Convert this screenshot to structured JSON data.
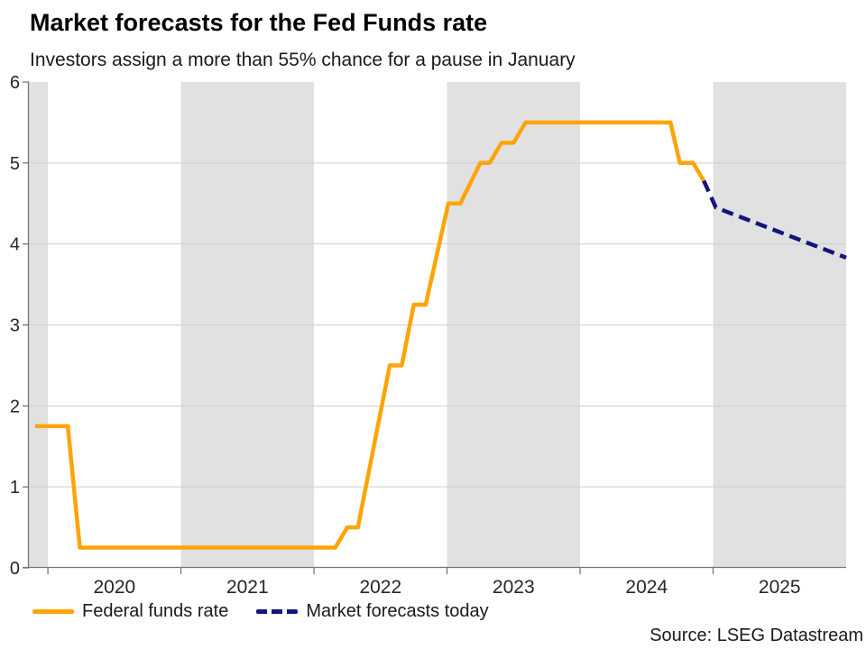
{
  "header": {
    "title": "Market forecasts for the Fed Funds rate",
    "subtitle": "Investors assign a more than 55% chance for a pause in January"
  },
  "footer": {
    "source": "Source: LSEG Datastream"
  },
  "chart_data": {
    "type": "line",
    "title": "Market forecasts for the Fed Funds rate",
    "subtitle": "Investors assign a more than 55% chance for a pause in January",
    "x_axis": {
      "unit": "year",
      "range": [
        2019.857,
        2026.0
      ],
      "tick_years": [
        2020,
        2021,
        2022,
        2023,
        2024,
        2025
      ],
      "tick_labels": [
        "2020",
        "2021",
        "2022",
        "2023",
        "2024",
        "2025"
      ]
    },
    "y_axis": {
      "range": [
        0,
        6
      ],
      "ticks": [
        0,
        1,
        2,
        3,
        4,
        5,
        6
      ],
      "gridlines": [
        1,
        2,
        3,
        4,
        5
      ]
    },
    "shaded_year_bands": [
      [
        2019.857,
        2020
      ],
      [
        2021,
        2022
      ],
      [
        2023,
        2024
      ],
      [
        2025,
        2026
      ]
    ],
    "colors": {
      "band": "#E1E1E1",
      "gridline": "#CFCFCF",
      "axis": "#777777",
      "label": "#262626",
      "fed_funds": "#FFA408",
      "forecast": "#15157E"
    },
    "legend_position": "bottom-left",
    "series": [
      {
        "name": "Federal funds rate",
        "style": "solid",
        "color": "#FFA408",
        "points": [
          [
            2019.905,
            1.75
          ],
          [
            2020.15,
            1.75
          ],
          [
            2020.24,
            0.25
          ],
          [
            2022.16,
            0.25
          ],
          [
            2022.25,
            0.5
          ],
          [
            2022.33,
            0.5
          ],
          [
            2022.57,
            2.5
          ],
          [
            2022.66,
            2.5
          ],
          [
            2022.75,
            3.25
          ],
          [
            2022.84,
            3.25
          ],
          [
            2023.01,
            4.5
          ],
          [
            2023.1,
            4.5
          ],
          [
            2023.25,
            5.0
          ],
          [
            2023.32,
            5.0
          ],
          [
            2023.41,
            5.25
          ],
          [
            2023.5,
            5.25
          ],
          [
            2023.59,
            5.5
          ],
          [
            2024.68,
            5.5
          ],
          [
            2024.75,
            5.0
          ],
          [
            2024.85,
            5.0
          ],
          [
            2024.93,
            4.78
          ]
        ]
      },
      {
        "name": "Market forecasts today",
        "style": "dashed",
        "color": "#15157E",
        "points": [
          [
            2024.93,
            4.78
          ],
          [
            2025.02,
            4.45
          ],
          [
            2026.0,
            3.83
          ]
        ]
      }
    ]
  }
}
